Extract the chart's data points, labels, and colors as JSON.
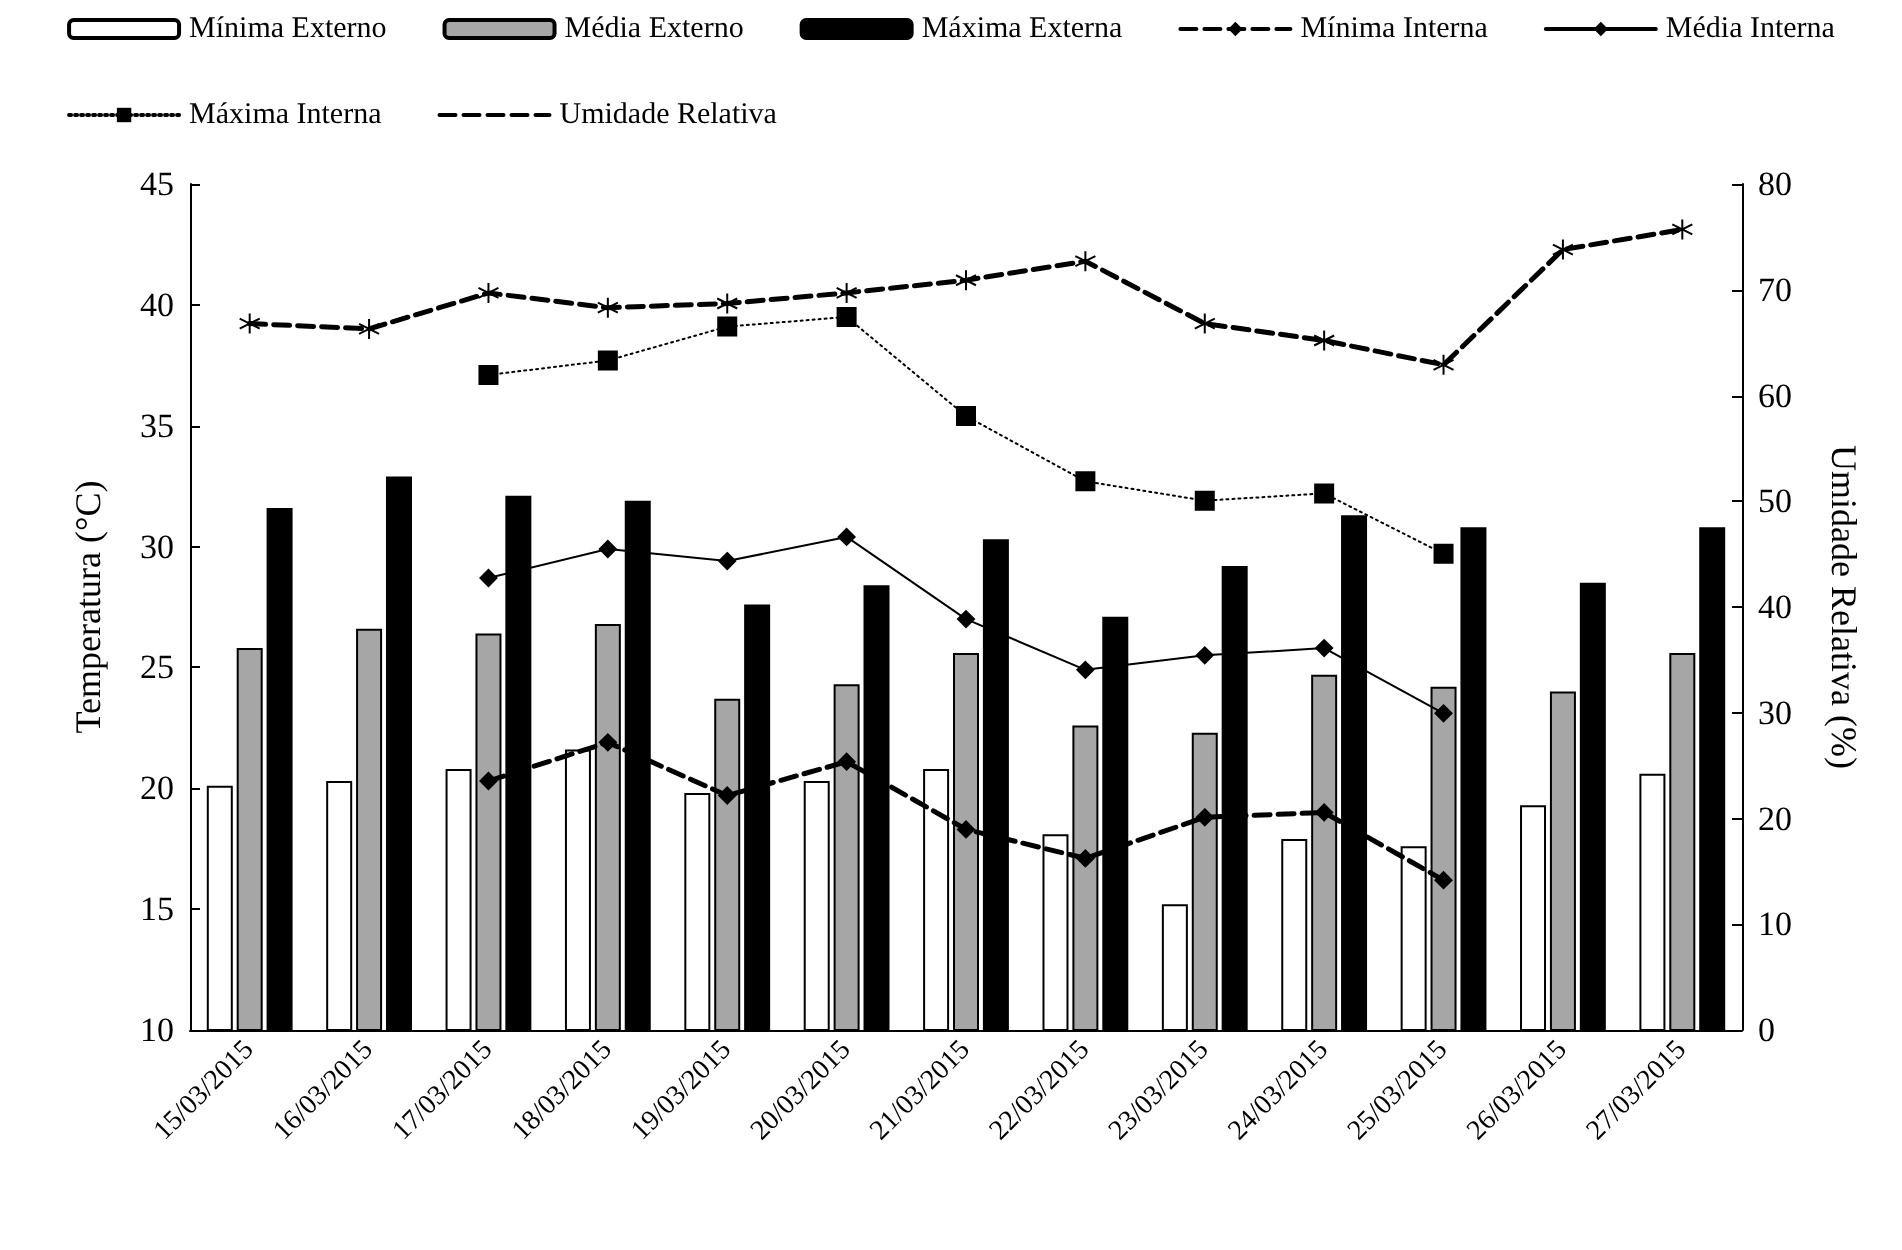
{
  "chart_data": {
    "type": "bar",
    "ylabel": "Temperatura (°C)",
    "y2label": "Umidade Relativa (%)",
    "categories": [
      "15/03/2015",
      "16/03/2015",
      "17/03/2015",
      "18/03/2015",
      "19/03/2015",
      "20/03/2015",
      "21/03/2015",
      "22/03/2015",
      "23/03/2015",
      "24/03/2015",
      "25/03/2015",
      "26/03/2015",
      "27/03/2015"
    ],
    "series": [
      {
        "name": "Mínima Externo",
        "color": "#ffffff",
        "values": [
          20.1,
          20.3,
          20.8,
          21.6,
          19.8,
          20.3,
          20.8,
          18.1,
          15.2,
          17.9,
          17.6,
          19.3,
          20.6
        ]
      },
      {
        "name": "Média Externo",
        "color": "#a6a6a6",
        "values": [
          25.8,
          26.6,
          26.4,
          26.8,
          23.7,
          24.3,
          25.6,
          22.6,
          22.3,
          24.7,
          24.2,
          24.0,
          25.6
        ]
      },
      {
        "name": "Máxima Externa",
        "color": "#000000",
        "values": [
          31.6,
          32.9,
          32.1,
          31.9,
          27.6,
          28.4,
          30.3,
          27.1,
          29.2,
          31.3,
          30.8,
          28.5,
          30.8
        ]
      },
      {
        "name": "Mínima Interna",
        "type": "line",
        "color": "#000000",
        "marker": "diamond",
        "line_style": "dashed",
        "values": [
          null,
          null,
          20.3,
          21.9,
          19.7,
          21.1,
          18.3,
          17.1,
          18.8,
          19.0,
          16.2,
          null,
          null
        ]
      },
      {
        "name": "Média Interna",
        "type": "line",
        "color": "#000000",
        "marker": "diamond",
        "line_style": "solid",
        "values": [
          null,
          null,
          28.7,
          29.9,
          29.4,
          30.4,
          27.0,
          24.9,
          25.5,
          25.8,
          23.1,
          null,
          null
        ]
      },
      {
        "name": "Máxima Interna",
        "type": "line",
        "color": "#000000",
        "marker": "square",
        "line_style": "dotted",
        "values": [
          null,
          null,
          37.1,
          37.7,
          39.1,
          39.5,
          35.4,
          32.7,
          31.9,
          32.2,
          29.7,
          null,
          null
        ]
      },
      {
        "name": "Umidade Relativa",
        "type": "line",
        "axis": "y2",
        "color": "#000000",
        "marker": "cross",
        "line_style": "dashed",
        "values": [
          66.8,
          66.3,
          69.7,
          68.3,
          68.7,
          69.7,
          70.9,
          72.7,
          66.8,
          65.2,
          62.9,
          73.8,
          75.7
        ]
      }
    ],
    "ylim": [
      10,
      45
    ],
    "yticks": [
      10,
      15,
      20,
      25,
      30,
      35,
      40,
      45
    ],
    "y2lim": [
      0,
      80
    ],
    "y2ticks": [
      0,
      10,
      20,
      30,
      40,
      50,
      60,
      70,
      80
    ],
    "legend": "top",
    "grid": false
  }
}
